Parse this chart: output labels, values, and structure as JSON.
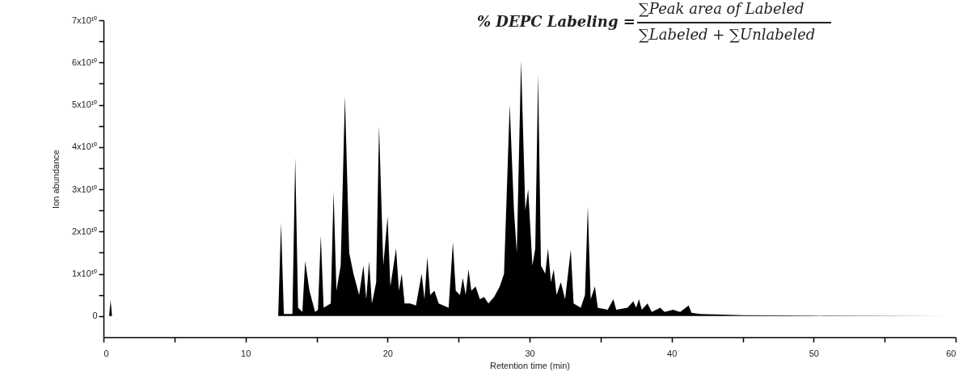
{
  "chart_data": {
    "type": "area",
    "xlabel": "Retention time (min)",
    "ylabel": "Ion abundance",
    "annotations": [
      "% DEPC Labeling =",
      "∑Peak area of Labeled",
      "∑Labeled + ∑Unlabeled"
    ],
    "xlim": [
      0,
      60
    ],
    "xticks": [
      0,
      {
        "value": 5,
        "label": null
      },
      10,
      {
        "value": 15,
        "label": null
      },
      20,
      {
        "value": 25,
        "label": null
      },
      30,
      {
        "value": 35,
        "label": null
      },
      40,
      {
        "value": 45,
        "label": null
      },
      50,
      {
        "value": 55,
        "label": null
      },
      60
    ],
    "ylim": [
      -5000000000.0,
      70000000000.0
    ],
    "yticks": [
      {
        "value": 0,
        "label": "0"
      },
      {
        "value": 5000000000.0,
        "label": null
      },
      {
        "value": 10000000000.0,
        "label": "1x10¹⁰"
      },
      {
        "value": 15000000000.0,
        "label": null
      },
      {
        "value": 20000000000.0,
        "label": "2x10¹⁰"
      },
      {
        "value": 25000000000.0,
        "label": null
      },
      {
        "value": 30000000000.0,
        "label": "3x10¹⁰"
      },
      {
        "value": 35000000000.0,
        "label": null
      },
      {
        "value": 40000000000.0,
        "label": "4x10¹⁰"
      },
      {
        "value": 45000000000.0,
        "label": null
      },
      {
        "value": 50000000000.0,
        "label": "5x10¹⁰"
      },
      {
        "value": 55000000000.0,
        "label": null
      },
      {
        "value": 60000000000.0,
        "label": "6x10¹⁰"
      },
      {
        "value": 65000000000.0,
        "label": null
      },
      {
        "value": 70000000000.0,
        "label": "7x10¹⁰"
      }
    ],
    "x": [
      0,
      0.4,
      0.5,
      0.6,
      12.3,
      12.5,
      12.7,
      13.3,
      13.5,
      13.7,
      14.0,
      14.2,
      14.5,
      14.9,
      15.1,
      15.3,
      15.5,
      16.0,
      16.2,
      16.4,
      16.7,
      17.0,
      17.3,
      17.6,
      18.0,
      18.3,
      18.5,
      18.7,
      18.9,
      19.2,
      19.4,
      19.7,
      20.0,
      20.2,
      20.6,
      20.8,
      21.0,
      21.2,
      21.6,
      22.0,
      22.4,
      22.6,
      22.8,
      23.0,
      23.3,
      23.6,
      24.3,
      24.6,
      24.8,
      25.1,
      25.3,
      25.5,
      25.7,
      25.9,
      26.2,
      26.5,
      26.8,
      27.1,
      27.5,
      27.9,
      28.2,
      28.6,
      28.9,
      29.1,
      29.4,
      29.7,
      29.9,
      30.2,
      30.4,
      30.6,
      30.8,
      31.1,
      31.3,
      31.5,
      31.7,
      31.9,
      32.2,
      32.5,
      32.9,
      33.1,
      33.6,
      33.9,
      34.1,
      34.3,
      34.6,
      34.8,
      35.5,
      35.9,
      36.1,
      36.9,
      37.3,
      37.5,
      37.7,
      37.9,
      38.3,
      38.6,
      39.2,
      39.5,
      40.1,
      40.6,
      41.2,
      41.4,
      42.0,
      45.0,
      50.0,
      59.5
    ],
    "series": [
      {
        "color": "#000000",
        "values": [
          0,
          0,
          3800000000.0,
          0,
          0,
          22000000000.0,
          500000000.0,
          500000000.0,
          37500000000.0,
          2000000000.0,
          1000000000.0,
          13000000000.0,
          6000000000.0,
          1000000000.0,
          1500000000.0,
          19000000000.0,
          2000000000.0,
          3000000000.0,
          29500000000.0,
          6000000000.0,
          12000000000.0,
          52000000000.0,
          15000000000.0,
          10000000000.0,
          5000000000.0,
          12000000000.0,
          4000000000.0,
          13000000000.0,
          3000000000.0,
          8000000000.0,
          45000000000.0,
          12000000000.0,
          23500000000.0,
          7000000000.0,
          16000000000.0,
          6000000000.0,
          10000000000.0,
          3000000000.0,
          3000000000.0,
          2500000000.0,
          10000000000.0,
          4000000000.0,
          14000000000.0,
          5000000000.0,
          6000000000.0,
          3000000000.0,
          2000000000.0,
          17500000000.0,
          6000000000.0,
          5000000000.0,
          9000000000.0,
          5000000000.0,
          11000000000.0,
          6000000000.0,
          7000000000.0,
          4000000000.0,
          4500000000.0,
          3000000000.0,
          4500000000.0,
          7000000000.0,
          10000000000.0,
          50000000000.0,
          25000000000.0,
          15000000000.0,
          60500000000.0,
          25000000000.0,
          30000000000.0,
          12000000000.0,
          16000000000.0,
          57200000000.0,
          12000000000.0,
          10000000000.0,
          16000000000.0,
          8000000000.0,
          11000000000.0,
          5000000000.0,
          8000000000.0,
          4000000000.0,
          15700000000.0,
          3000000000.0,
          2000000000.0,
          5000000000.0,
          26000000000.0,
          4000000000.0,
          7000000000.0,
          2000000000.0,
          1500000000.0,
          4000000000.0,
          1500000000.0,
          2000000000.0,
          3500000000.0,
          2000000000.0,
          4000000000.0,
          1500000000.0,
          3000000000.0,
          1000000000.0,
          2000000000.0,
          1000000000.0,
          1500000000.0,
          1000000000.0,
          2500000000.0,
          800000000.0,
          500000000.0,
          200000000.0,
          100000000.0,
          0
        ]
      }
    ]
  }
}
